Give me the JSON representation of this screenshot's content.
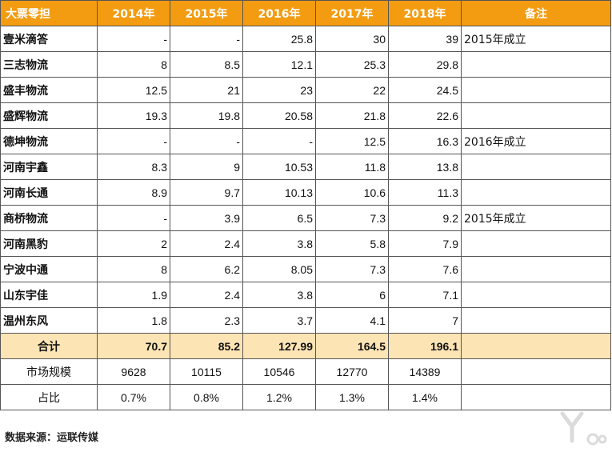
{
  "header": [
    "大票零担",
    "2014年",
    "2015年",
    "2016年",
    "2017年",
    "2018年",
    "备注"
  ],
  "rows": [
    {
      "name": "壹米滴答",
      "v": [
        "-",
        "-",
        "25.8",
        "30",
        "39"
      ],
      "note": "2015年成立"
    },
    {
      "name": "三志物流",
      "v": [
        "8",
        "8.5",
        "12.1",
        "25.3",
        "29.8"
      ],
      "note": ""
    },
    {
      "name": "盛丰物流",
      "v": [
        "12.5",
        "21",
        "23",
        "22",
        "24.5"
      ],
      "note": ""
    },
    {
      "name": "盛辉物流",
      "v": [
        "19.3",
        "19.8",
        "20.58",
        "21.8",
        "22.6"
      ],
      "note": ""
    },
    {
      "name": "德坤物流",
      "v": [
        "-",
        "-",
        "-",
        "12.5",
        "16.3"
      ],
      "note": "2016年成立"
    },
    {
      "name": "河南宇鑫",
      "v": [
        "8.3",
        "9",
        "10.53",
        "11.8",
        "13.8"
      ],
      "note": ""
    },
    {
      "name": "河南长通",
      "v": [
        "8.9",
        "9.7",
        "10.13",
        "10.6",
        "11.3"
      ],
      "note": ""
    },
    {
      "name": "商桥物流",
      "v": [
        "-",
        "3.9",
        "6.5",
        "7.3",
        "9.2"
      ],
      "note": "2015年成立"
    },
    {
      "name": "河南黑豹",
      "v": [
        "2",
        "2.4",
        "3.8",
        "5.8",
        "7.9"
      ],
      "note": ""
    },
    {
      "name": "宁波中通",
      "v": [
        "8",
        "6.2",
        "8.05",
        "7.3",
        "7.6"
      ],
      "note": ""
    },
    {
      "name": "山东宇佳",
      "v": [
        "1.9",
        "2.4",
        "3.8",
        "6",
        "7.1"
      ],
      "note": ""
    },
    {
      "name": "温州东风",
      "v": [
        "1.8",
        "2.3",
        "3.7",
        "4.1",
        "7"
      ],
      "note": ""
    }
  ],
  "total": {
    "name": "合计",
    "v": [
      "70.7",
      "85.2",
      "127.99",
      "164.5",
      "196.1"
    ],
    "note": ""
  },
  "market": {
    "name": "市场规模",
    "v": [
      "9628",
      "10115",
      "10546",
      "12770",
      "14389"
    ],
    "note": ""
  },
  "share": {
    "name": "占比",
    "v": [
      "0.7%",
      "0.8%",
      "1.2%",
      "1.3%",
      "1.4%"
    ],
    "note": ""
  },
  "source": "数据来源：运联传媒",
  "watermark_icon": "yiou-logo-icon"
}
